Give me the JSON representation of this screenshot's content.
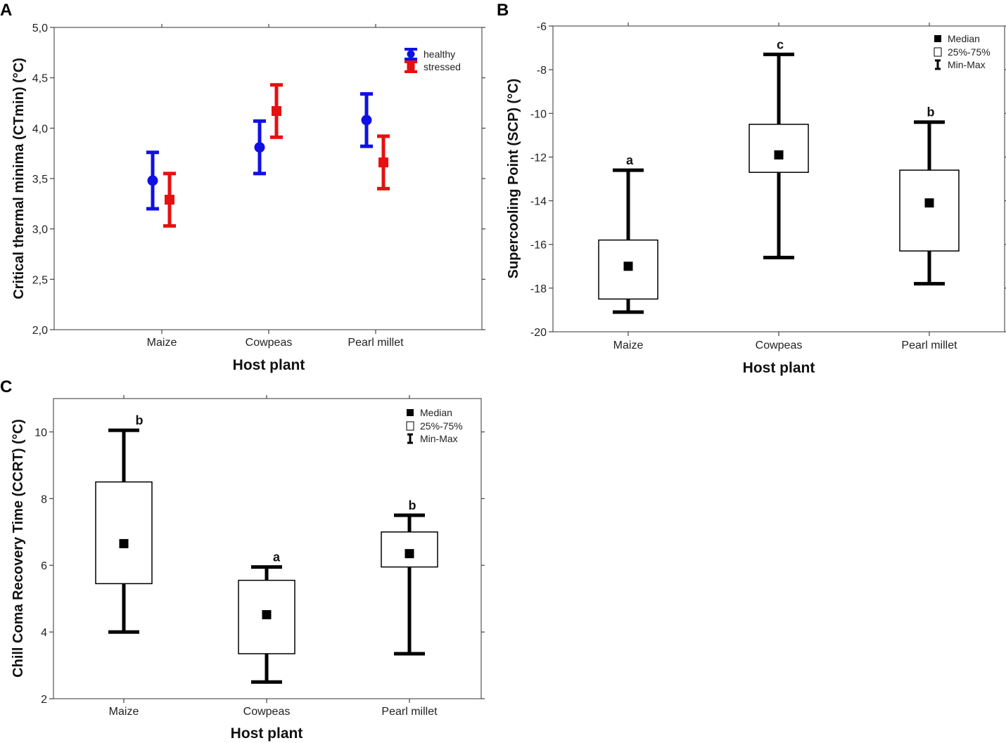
{
  "chart_data": [
    {
      "panel": "A",
      "type": "errorbar",
      "title": "",
      "xlabel": "Host plant",
      "ylabel": "Critical thermal minima (CTmin) (°C)",
      "ylim": [
        2.0,
        5.0
      ],
      "yticks": [
        "2,0",
        "2,5",
        "3,0",
        "3,5",
        "4,0",
        "4,5",
        "5,0"
      ],
      "categories": [
        "Maize",
        "Cowpeas",
        "Pearl millet"
      ],
      "legend": {
        "position": "top-right"
      },
      "series": [
        {
          "name": "healthy",
          "color": "#1010e6",
          "marker": "circle",
          "mean": [
            3.48,
            3.81,
            4.08
          ],
          "lower": [
            3.2,
            3.55,
            3.82
          ],
          "upper": [
            3.76,
            4.07,
            4.34
          ]
        },
        {
          "name": "stressed",
          "color": "#e61010",
          "marker": "square",
          "mean": [
            3.29,
            4.17,
            3.66
          ],
          "lower": [
            3.03,
            3.91,
            3.4
          ],
          "upper": [
            3.55,
            4.43,
            3.92
          ]
        }
      ]
    },
    {
      "panel": "B",
      "type": "box",
      "title": "",
      "xlabel": "Host plant",
      "ylabel": "Supercooling Point (SCP) (°C)",
      "ylim": [
        -20,
        -6
      ],
      "yticks": [
        "-20",
        "-18",
        "-16",
        "-14",
        "-12",
        "-10",
        "-8",
        "-6"
      ],
      "categories": [
        "Maize",
        "Cowpeas",
        "Pearl millet"
      ],
      "legend": {
        "position": "top-right",
        "entries": [
          "Median",
          "25%-75%",
          "Min-Max"
        ]
      },
      "median": [
        -17.0,
        -11.9,
        -14.1
      ],
      "q1": [
        -18.5,
        -12.7,
        -16.3
      ],
      "q3": [
        -15.8,
        -10.5,
        -12.6
      ],
      "min": [
        -19.1,
        -16.6,
        -17.8
      ],
      "max": [
        -12.6,
        -7.3,
        -10.4
      ],
      "letters": [
        "a",
        "c",
        "b"
      ]
    },
    {
      "panel": "C",
      "type": "box",
      "title": "",
      "xlabel": "Host plant",
      "ylabel": "Chill Coma Recovery Time (CCRT) (°C)",
      "ylim": [
        2,
        11
      ],
      "yticks": [
        "2",
        "4",
        "6",
        "8",
        "10"
      ],
      "categories": [
        "Maize",
        "Cowpeas",
        "Pearl millet"
      ],
      "legend": {
        "position": "top-right",
        "entries": [
          "Median",
          "25%-75%",
          "Min-Max"
        ]
      },
      "median": [
        6.65,
        4.52,
        6.35
      ],
      "q1": [
        5.45,
        3.35,
        5.95
      ],
      "q3": [
        8.5,
        5.55,
        7.0
      ],
      "min": [
        4.0,
        2.5,
        3.35
      ],
      "max": [
        10.05,
        5.95,
        7.5
      ],
      "letters": [
        "b",
        "a",
        "b"
      ]
    }
  ]
}
